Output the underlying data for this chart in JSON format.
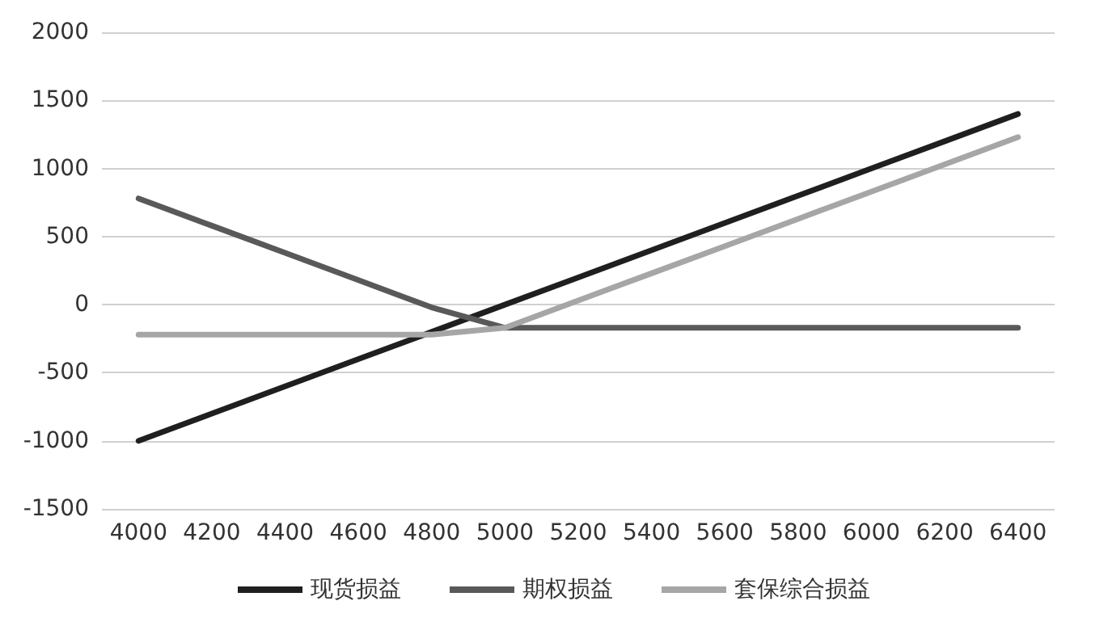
{
  "chart_data": {
    "type": "line",
    "categories": [
      "4000",
      "4200",
      "4400",
      "4600",
      "4800",
      "5000",
      "5200",
      "5400",
      "5600",
      "5800",
      "6000",
      "6200",
      "6400"
    ],
    "series": [
      {
        "name": "现货损益",
        "color": "#1f1f1f",
        "values": [
          -1000,
          -800,
          -600,
          -400,
          -200,
          0,
          200,
          400,
          600,
          800,
          1000,
          1200,
          1400
        ]
      },
      {
        "name": "期权损益",
        "color": "#595959",
        "values": [
          780,
          580,
          380,
          180,
          -20,
          -170,
          -170,
          -170,
          -170,
          -170,
          -170,
          -170,
          -170
        ]
      },
      {
        "name": "套保综合损益",
        "color": "#a6a6a6",
        "values": [
          -220,
          -220,
          -220,
          -220,
          -220,
          -170,
          30,
          230,
          430,
          630,
          830,
          1030,
          1230
        ]
      }
    ],
    "ylim": [
      -1500,
      2000
    ],
    "yticks": [
      -1500,
      -1000,
      -500,
      0,
      500,
      1000,
      1500,
      2000
    ],
    "grid": "y",
    "legend": "bottom",
    "marker": "none",
    "line_style": "solid"
  }
}
